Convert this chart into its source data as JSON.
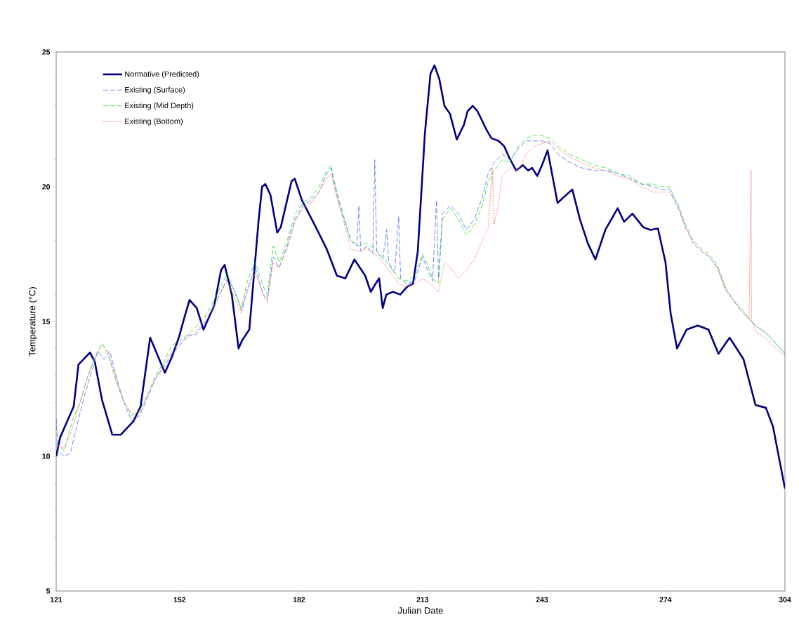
{
  "chart_data": {
    "type": "line",
    "xlabel": "Julian Date",
    "ylabel": "Temperature (°C)",
    "xlim": [
      121,
      304
    ],
    "ylim": [
      5,
      25
    ],
    "xticks": [
      121,
      152,
      182,
      213,
      243,
      274,
      304
    ],
    "yticks": [
      5,
      {
        "value": 6,
        "label": null
      },
      {
        "value": 7,
        "label": null
      },
      {
        "value": 8,
        "label": null
      },
      {
        "value": 9,
        "label": null
      },
      10,
      {
        "value": 11,
        "label": null
      },
      {
        "value": 12,
        "label": null
      },
      {
        "value": 13,
        "label": null
      },
      {
        "value": 14,
        "label": null
      },
      15,
      {
        "value": 16,
        "label": null
      },
      {
        "value": 17,
        "label": null
      },
      {
        "value": 18,
        "label": null
      },
      {
        "value": 19,
        "label": null
      },
      20,
      {
        "value": 21,
        "label": null
      },
      {
        "value": 22,
        "label": null
      },
      {
        "value": 23,
        "label": null
      },
      {
        "value": 24,
        "label": null
      },
      25
    ],
    "legend": "top left",
    "series": [
      {
        "name": "Normative (Predicted)",
        "color": "#000080",
        "line_style": "solid",
        "x": [
          121,
          122,
          125.4,
          126.6,
          129.5,
          130.7,
          132.5,
          135.1,
          137.2,
          140.4,
          142.2,
          144.6,
          148.3,
          150.1,
          151.9,
          153.1,
          154.5,
          156.3,
          158,
          160.7,
          162.4,
          163.3,
          165.1,
          166.8,
          167.7,
          169.5,
          171.8,
          172.7,
          173.5,
          174.8,
          176.5,
          177.4,
          180.1,
          180.9,
          182.7,
          186.2,
          188.9,
          191.5,
          193.6,
          195.9,
          198.6,
          200,
          201.2,
          202.1,
          203,
          203.9,
          205.6,
          207.4,
          209.2,
          210.6,
          211.8,
          213.6,
          215,
          216,
          217.2,
          218.5,
          219.9,
          221.6,
          223.4,
          224.3,
          225.6,
          226.8,
          229.1,
          230.3,
          232.1,
          233.5,
          234.7,
          236.5,
          238.2,
          239.5,
          240.5,
          241.8,
          243,
          244.4,
          246.9,
          250.6,
          252.5,
          254.5,
          256.4,
          258.9,
          262,
          263.6,
          265.7,
          268.4,
          270.2,
          272.1,
          274,
          275.3,
          276.9,
          279.3,
          282.1,
          284.8,
          287.3,
          290.1,
          293.6,
          296.6,
          299.2,
          301,
          304
        ],
        "values": [
          10,
          10.7,
          11.85,
          13.4,
          13.85,
          13.5,
          12.1,
          10.8,
          10.8,
          11.3,
          11.85,
          14.4,
          13.1,
          13.7,
          14.45,
          15.1,
          15.8,
          15.5,
          14.7,
          15.6,
          16.9,
          17.1,
          16,
          14,
          14.3,
          14.7,
          18.7,
          20,
          20.1,
          19.7,
          18.3,
          18.5,
          20.2,
          20.3,
          19.5,
          18.5,
          17.7,
          16.7,
          16.6,
          17.3,
          16.7,
          16.1,
          16.4,
          16.6,
          15.5,
          16,
          16.1,
          16,
          16.3,
          16.4,
          17.6,
          22,
          24.2,
          24.5,
          24,
          23,
          22.7,
          21.75,
          22.3,
          22.8,
          23,
          22.8,
          22.1,
          21.8,
          21.7,
          21.5,
          21.1,
          20.6,
          20.8,
          20.6,
          20.7,
          20.4,
          20.8,
          21.35,
          19.4,
          19.9,
          18.8,
          17.9,
          17.3,
          18.4,
          19.2,
          18.7,
          19,
          18.5,
          18.4,
          18.45,
          17.2,
          15.3,
          14,
          14.7,
          14.85,
          14.7,
          13.8,
          14.4,
          13.6,
          11.9,
          11.8,
          11.1,
          8.8
        ]
      },
      {
        "name": "Existing (Surface)",
        "color": "#3355ff",
        "line_style": "dashed",
        "x": [
          121,
          121.5,
          123,
          124.5,
          126,
          128,
          130,
          131.5,
          133,
          134.5,
          136,
          138,
          140,
          142,
          144,
          146,
          148,
          150,
          152,
          154,
          156,
          158,
          160,
          162,
          164,
          166,
          167.5,
          169,
          171,
          173,
          174,
          175.5,
          177,
          179,
          181,
          183,
          185,
          187,
          189,
          190,
          191.5,
          193,
          195,
          196.5,
          197,
          197.5,
          199,
          200.5,
          201,
          201.5,
          203,
          204,
          204.5,
          206,
          207,
          207.5,
          209,
          211,
          213,
          214,
          215.5,
          216.5,
          217,
          218,
          220,
          222,
          224,
          226,
          228,
          229.5,
          231,
          233,
          235,
          237,
          239,
          241,
          243,
          245,
          247,
          250,
          253,
          256,
          259,
          262,
          265,
          268,
          271,
          273,
          275,
          277,
          279,
          281,
          283,
          285,
          287,
          289,
          291,
          293,
          295,
          297,
          299,
          301,
          304
        ],
        "values": [
          11.4,
          10.2,
          10,
          10.1,
          11,
          12.2,
          13.2,
          13.9,
          13.6,
          13.9,
          13,
          12,
          11.3,
          11.5,
          12.2,
          12.9,
          13.3,
          13.8,
          14.1,
          14.5,
          14.5,
          14.9,
          15.3,
          16,
          16.6,
          16.1,
          15.4,
          16.2,
          17,
          16,
          15.8,
          17.4,
          17,
          17.8,
          18.8,
          19.3,
          19.5,
          19.8,
          20.5,
          20.7,
          19.7,
          18.9,
          18,
          17.8,
          19.3,
          17.6,
          17.8,
          17.5,
          21,
          17.6,
          17.3,
          18.4,
          17.2,
          16.8,
          18.9,
          16.6,
          16.4,
          16.5,
          17.4,
          17,
          16.5,
          19.5,
          16.6,
          19,
          19.3,
          19,
          18.4,
          18.8,
          19.6,
          20.5,
          20.9,
          21.2,
          21,
          21.4,
          21.7,
          21.7,
          21.7,
          21.6,
          21.2,
          20.9,
          20.7,
          20.6,
          20.6,
          20.5,
          20.3,
          20.1,
          20,
          19.9,
          19.9,
          19.3,
          18.5,
          17.9,
          17.6,
          17.4,
          17,
          16.2,
          15.8,
          15.4,
          15.1,
          14.8,
          14.6,
          14.3,
          13.8
        ]
      },
      {
        "name": "Existing (Mid Depth)",
        "color": "#00e000",
        "line_style": "dashed",
        "x": [
          121,
          123,
          125,
          127,
          129,
          131,
          132.5,
          134,
          136,
          138,
          140,
          142,
          144,
          146,
          148,
          150,
          152,
          154,
          156,
          158,
          160,
          162,
          164,
          166,
          167.5,
          169,
          171,
          173,
          174,
          175.5,
          177,
          179,
          181,
          183,
          185,
          187,
          189,
          190,
          191.5,
          193,
          195,
          197,
          199,
          201,
          203,
          205,
          207,
          209,
          211,
          213,
          214,
          215.5,
          217,
          218,
          220,
          222,
          224,
          226,
          228,
          229.5,
          231,
          233,
          235,
          237,
          239,
          241,
          243,
          245,
          247,
          250,
          253,
          256,
          259,
          262,
          265,
          268,
          271,
          273,
          275,
          277,
          279,
          281,
          283,
          285,
          287,
          289,
          291,
          293,
          295,
          297,
          299,
          301,
          304
        ],
        "values": [
          10.5,
          10.2,
          11.3,
          12,
          13,
          13.7,
          14.2,
          13.8,
          12.8,
          12,
          11.5,
          11.7,
          12.3,
          13,
          13.5,
          14.1,
          14.3,
          14.5,
          14.8,
          15.1,
          15.6,
          16.2,
          16.8,
          16,
          15.5,
          16.5,
          17.2,
          16.3,
          16,
          17.8,
          17.2,
          18,
          19,
          19.4,
          19.6,
          20,
          20.6,
          20.8,
          19.8,
          19,
          18,
          17.8,
          17.9,
          17.7,
          17.4,
          17,
          16.6,
          16.5,
          16.7,
          17.5,
          17.2,
          16.6,
          16.4,
          18.8,
          19.2,
          18.8,
          18.2,
          18.6,
          19.3,
          20.2,
          20.6,
          21,
          20.9,
          21.5,
          21.8,
          21.9,
          21.9,
          21.8,
          21.5,
          21.2,
          21,
          20.8,
          20.7,
          20.5,
          20.4,
          20.1,
          20.1,
          20,
          20,
          19.4,
          18.6,
          18,
          17.7,
          17.5,
          17.1,
          16.3,
          15.8,
          15.5,
          15.1,
          14.8,
          14.6,
          14.3,
          13.8
        ]
      },
      {
        "name": "Existing (Bottom)",
        "color": "#ff8080",
        "line_style": "dotted",
        "x": [
          121,
          123,
          125,
          127,
          129,
          131,
          132.5,
          134,
          136,
          138,
          140,
          142,
          144,
          146,
          148,
          150,
          152,
          154,
          156,
          158,
          160,
          162,
          164,
          166,
          167.5,
          169,
          171,
          173,
          174,
          175.5,
          177,
          179,
          181,
          183,
          185,
          187,
          189,
          190,
          191.5,
          193,
          195,
          197,
          199,
          201,
          203,
          205,
          207,
          209,
          211,
          213,
          215,
          217,
          218.5,
          220,
          222,
          224,
          226,
          228,
          229.5,
          230.5,
          231,
          232,
          233,
          235,
          237,
          239,
          241,
          243,
          245,
          247,
          250,
          253,
          256,
          259,
          262,
          265,
          268,
          271,
          273,
          275,
          277,
          279,
          281,
          283,
          285,
          287,
          289,
          291,
          293,
          295,
          295.5,
          295.6,
          297,
          299,
          301,
          304
        ],
        "values": [
          10.4,
          10.3,
          11,
          12,
          13,
          13.8,
          14.1,
          13.9,
          12.9,
          12,
          11.6,
          11.6,
          12.3,
          12.9,
          13.4,
          13.9,
          14.2,
          14.4,
          14.6,
          15,
          15.4,
          16,
          16.5,
          15.8,
          15.3,
          16.1,
          16.8,
          16,
          15.7,
          17.2,
          17,
          17.7,
          18.7,
          19.2,
          19.4,
          19.8,
          20.3,
          20.5,
          19.6,
          18.8,
          17.7,
          17.6,
          17.7,
          17.5,
          17.2,
          16.8,
          16.4,
          16.3,
          16.4,
          16.6,
          16.4,
          16.1,
          17.2,
          17,
          16.6,
          16.9,
          17.3,
          18,
          18.5,
          20.7,
          18.6,
          19.3,
          20.4,
          20.7,
          20.6,
          21.2,
          21.5,
          21.6,
          21.7,
          21.4,
          21.1,
          20.9,
          20.7,
          20.6,
          20.4,
          20.3,
          20,
          19.8,
          19.8,
          19.8,
          19.3,
          18.5,
          17.9,
          17.6,
          17.4,
          17,
          16.2,
          15.8,
          15.4,
          15.1,
          20.6,
          15,
          14.6,
          14.4,
          14.1,
          13.7
        ]
      }
    ]
  }
}
